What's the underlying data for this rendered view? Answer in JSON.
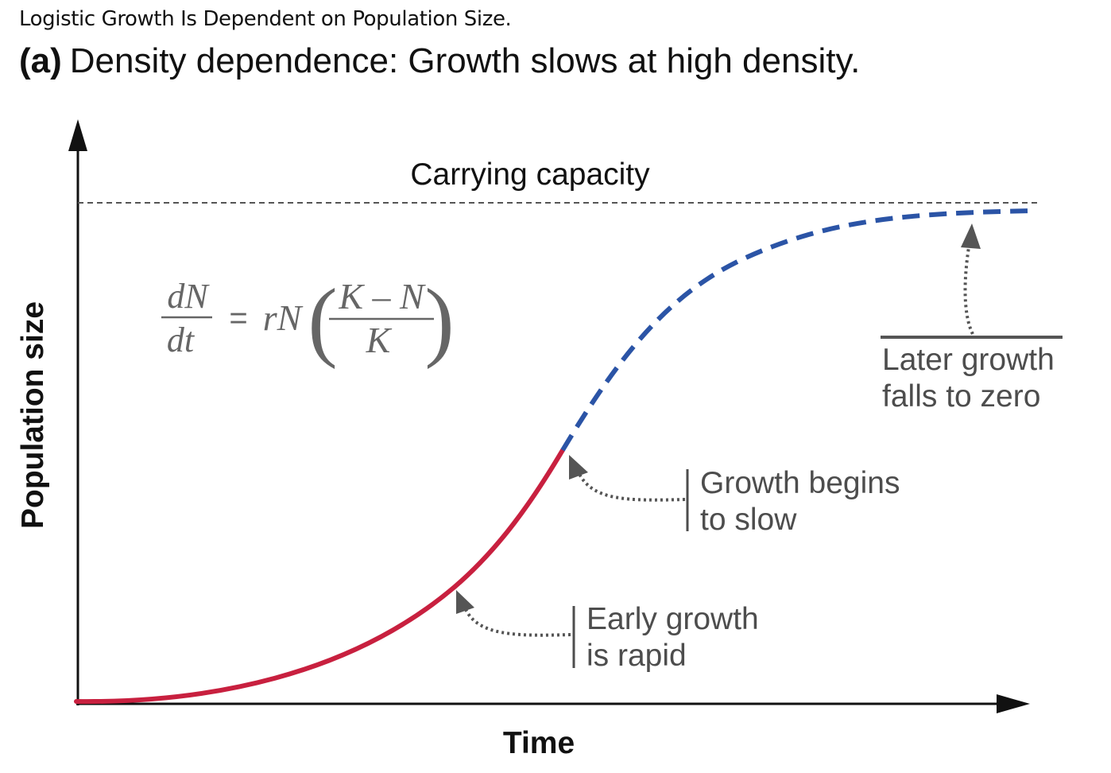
{
  "header": {
    "caption": "Logistic Growth Is Dependent on Population Size.",
    "panel_letter": "(a)",
    "panel_title": "Density dependence: Growth slows at high density."
  },
  "axes": {
    "x_label": "Time",
    "y_label": "Population size"
  },
  "carrying_capacity": {
    "label": "Carrying capacity"
  },
  "equation": {
    "lhs_numerator": "dN",
    "lhs_denominator": "dt",
    "equals": "=",
    "factor": "rN",
    "paren_open": "(",
    "paren_close": ")",
    "rhs_numerator": "K – N",
    "rhs_denominator": "K"
  },
  "annotations": {
    "early": {
      "line1": "Early growth",
      "line2": "is rapid"
    },
    "middle": {
      "line1": "Growth begins",
      "line2": "to slow"
    },
    "late": {
      "line1": "Later growth",
      "line2": "falls to zero"
    }
  },
  "colors": {
    "early_curve": "#c8203f",
    "late_curve": "#2b54a6",
    "axis": "#111111",
    "annotation_text": "#4d4d4d",
    "annotation_arrow": "#555555",
    "equation_text": "#666666"
  },
  "icons": {
    "y_axis_arrowhead": "arrowhead-up",
    "x_axis_arrowhead": "arrowhead-right",
    "annotation_arrows": "dotted-curved-arrow"
  }
}
